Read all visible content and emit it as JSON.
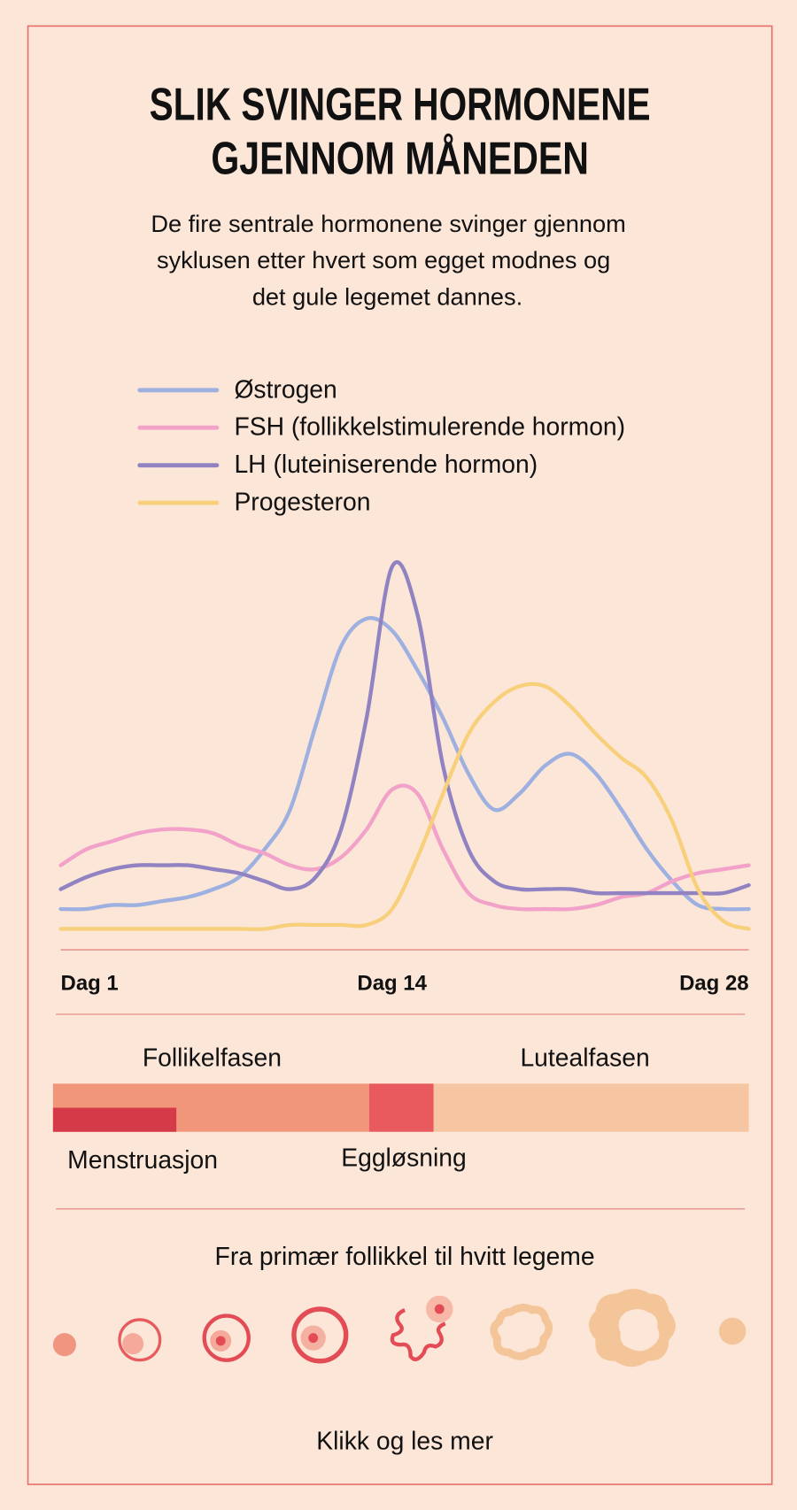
{
  "chart_data": {
    "type": "line",
    "title": [
      "SLIK SVINGER HORMONENE",
      "GJENNOM MÅNEDEN"
    ],
    "subtitle": [
      "De fire sentrale hormonene svinger gjennom",
      "syklusen etter hvert som egget modnes og",
      "det gule legemet dannes."
    ],
    "x": [
      1,
      2,
      3,
      4,
      5,
      6,
      7,
      8,
      9,
      10,
      11,
      12,
      13,
      14,
      15,
      16,
      17,
      18,
      19,
      20,
      21,
      22,
      23,
      24,
      25,
      26,
      27,
      28
    ],
    "xlim": [
      1,
      28
    ],
    "xticks": [
      {
        "value": 1,
        "label": "Dag 1"
      },
      {
        "value": 14,
        "label": "Dag 14"
      },
      {
        "value": 28,
        "label": "Dag 28"
      }
    ],
    "ylim": [
      0,
      100
    ],
    "grid": false,
    "series": [
      {
        "name": "Østrogen",
        "color": "#9db0e0",
        "values": [
          10,
          10,
          11,
          11,
          12,
          13,
          15,
          18,
          25,
          35,
          56,
          76,
          83,
          80,
          70,
          58,
          44,
          35,
          39,
          46,
          49,
          44,
          35,
          25,
          17,
          11,
          10,
          10
        ]
      },
      {
        "name": "FSH (follikkelstimulerende hormon)",
        "color": "#f2a2c9",
        "values": [
          21,
          25,
          27,
          29,
          30,
          30,
          29,
          26,
          24,
          21,
          20,
          23,
          30,
          40,
          39,
          25,
          14,
          11,
          10,
          10,
          10,
          11,
          13,
          14,
          17,
          19,
          20,
          21
        ]
      },
      {
        "name": "LH (luteiniserende hormon)",
        "color": "#9183c2",
        "values": [
          15,
          18,
          20,
          21,
          21,
          21,
          20,
          19,
          17,
          15,
          18,
          30,
          58,
          96,
          84,
          46,
          25,
          17,
          15,
          15,
          15,
          14,
          14,
          14,
          14,
          14,
          14,
          16
        ]
      },
      {
        "name": "Progesteron",
        "color": "#f8d07c",
        "values": [
          5,
          5,
          5,
          5,
          5,
          5,
          5,
          5,
          5,
          6,
          6,
          6,
          6,
          10,
          23,
          39,
          54,
          62,
          66,
          66,
          61,
          54,
          48,
          43,
          32,
          15,
          7,
          5
        ]
      }
    ],
    "phases": {
      "follicular": "Follikelfasen",
      "luteal": "Lutealfasen",
      "menstruation": "Menstruasjon",
      "ovulation": "Eggløsning"
    },
    "follicle_title": "Fra primær follikkel til hvitt legeme",
    "link": "Klikk og les mer"
  }
}
